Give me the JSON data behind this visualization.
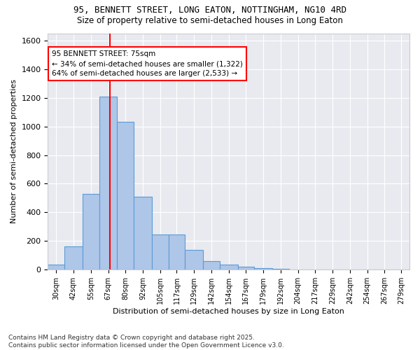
{
  "title1": "95, BENNETT STREET, LONG EATON, NOTTINGHAM, NG10 4RD",
  "title2": "Size of property relative to semi-detached houses in Long Eaton",
  "xlabel": "Distribution of semi-detached houses by size in Long Eaton",
  "ylabel": "Number of semi-detached properties",
  "footer1": "Contains HM Land Registry data © Crown copyright and database right 2025.",
  "footer2": "Contains public sector information licensed under the Open Government Licence v3.0.",
  "annotation_title": "95 BENNETT STREET: 75sqm",
  "annotation_line1": "← 34% of semi-detached houses are smaller (1,322)",
  "annotation_line2": "64% of semi-detached houses are larger (2,533) →",
  "property_size": 75,
  "bar_color": "#aec6e8",
  "bar_edge_color": "#5b9bd5",
  "vline_color": "red",
  "background_color": "#e8eaf0",
  "ylim": [
    0,
    1650
  ],
  "categories": [
    "30sqm",
    "42sqm",
    "55sqm",
    "67sqm",
    "80sqm",
    "92sqm",
    "105sqm",
    "117sqm",
    "129sqm",
    "142sqm",
    "154sqm",
    "167sqm",
    "179sqm",
    "192sqm",
    "204sqm",
    "217sqm",
    "229sqm",
    "242sqm",
    "254sqm",
    "267sqm",
    "279sqm"
  ],
  "bin_edges": [
    30,
    42,
    55,
    67,
    80,
    92,
    105,
    117,
    129,
    142,
    154,
    167,
    179,
    192,
    204,
    217,
    229,
    242,
    254,
    267,
    279,
    291
  ],
  "values": [
    35,
    165,
    530,
    1210,
    1030,
    510,
    245,
    245,
    140,
    60,
    35,
    20,
    10,
    8,
    3,
    2,
    1,
    0,
    0,
    0,
    0
  ],
  "n_cats": 21
}
